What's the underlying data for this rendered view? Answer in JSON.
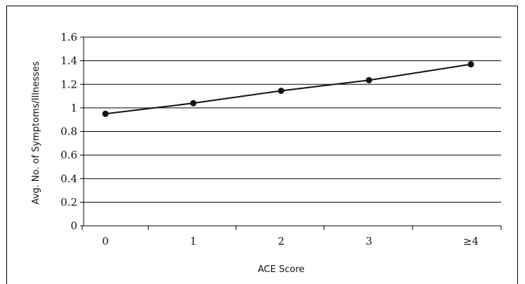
{
  "chart_data": {
    "type": "line",
    "categories": [
      "0",
      "1",
      "2",
      "3",
      "≥4"
    ],
    "series": [
      {
        "values": [
          0.95,
          1.04,
          1.145,
          1.235,
          1.37
        ]
      }
    ],
    "xlabel": "ACE Score",
    "ylabel": "Avg. No. of Symptoms/Illnesses",
    "ylim": [
      0,
      1.6
    ],
    "yticks": [
      "0",
      "0.2",
      "0.4",
      "0.6",
      "0.8",
      "1",
      "1.2",
      "1.4",
      "1.6"
    ],
    "grid": true,
    "legend": "none"
  }
}
